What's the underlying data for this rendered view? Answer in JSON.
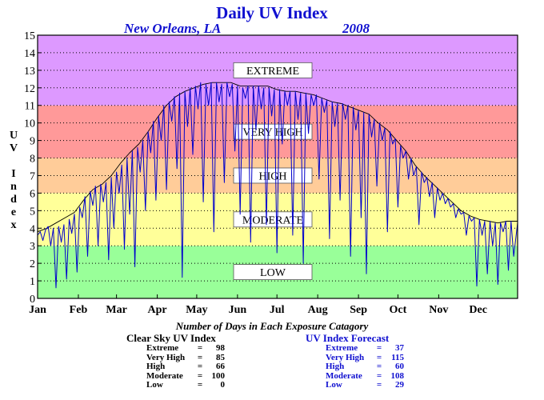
{
  "title": "Daily UV Index",
  "location": "New Orleans, LA",
  "year": "2008",
  "counts_heading": "Number of Days in Each Exposure Catagory",
  "clear_sky": {
    "heading": "Clear Sky UV Index",
    "rows": [
      {
        "label": "Extreme",
        "value": "98"
      },
      {
        "label": "Very High",
        "value": "85"
      },
      {
        "label": "High",
        "value": "66"
      },
      {
        "label": "Moderate",
        "value": "100"
      },
      {
        "label": "Low",
        "value": "0"
      }
    ]
  },
  "forecast": {
    "heading": "UV Index Forecast",
    "rows": [
      {
        "label": "Extreme",
        "value": "37"
      },
      {
        "label": "Very High",
        "value": "115"
      },
      {
        "label": "High",
        "value": "60"
      },
      {
        "label": "Moderate",
        "value": "108"
      },
      {
        "label": "Low",
        "value": "29"
      }
    ]
  },
  "chart_data": {
    "type": "line",
    "ylabel": "UV Index",
    "ylim": [
      0,
      15
    ],
    "yticks": [
      0,
      1,
      2,
      3,
      4,
      5,
      6,
      7,
      8,
      9,
      10,
      11,
      12,
      13,
      14,
      15
    ],
    "xlim": [
      1,
      366
    ],
    "x_unit": "day of year",
    "grid": "dotted horizontal",
    "months": [
      "Jan",
      "Feb",
      "Mar",
      "Apr",
      "May",
      "Jun",
      "Jul",
      "Aug",
      "Sep",
      "Oct",
      "Nov",
      "Dec"
    ],
    "month_start_days": [
      1,
      32,
      61,
      92,
      122,
      153,
      183,
      214,
      245,
      275,
      306,
      336
    ],
    "bands": [
      {
        "label": "LOW",
        "from": 0,
        "to": 3,
        "color": "#99ff99"
      },
      {
        "label": "MODERATE",
        "from": 3,
        "to": 6,
        "color": "#ffff99"
      },
      {
        "label": "HIGH",
        "from": 6,
        "to": 8,
        "color": "#ffcc99"
      },
      {
        "label": "VERY HIGH",
        "from": 8,
        "to": 11,
        "color": "#ff9999"
      },
      {
        "label": "EXTREME",
        "from": 11,
        "to": 15,
        "color": "#dd99ff"
      }
    ],
    "series": [
      {
        "name": "Clear Sky UV Index",
        "color": "#000000",
        "points": [
          [
            1,
            3.8
          ],
          [
            8,
            4.0
          ],
          [
            15,
            4.3
          ],
          [
            22,
            4.6
          ],
          [
            29,
            4.9
          ],
          [
            36,
            5.6
          ],
          [
            43,
            6.2
          ],
          [
            50,
            6.5
          ],
          [
            57,
            7.0
          ],
          [
            64,
            7.7
          ],
          [
            71,
            8.3
          ],
          [
            78,
            8.8
          ],
          [
            85,
            9.5
          ],
          [
            92,
            10.3
          ],
          [
            99,
            11.0
          ],
          [
            106,
            11.5
          ],
          [
            113,
            11.8
          ],
          [
            120,
            12.0
          ],
          [
            127,
            12.2
          ],
          [
            134,
            12.3
          ],
          [
            141,
            12.3
          ],
          [
            148,
            12.3
          ],
          [
            155,
            12.1
          ],
          [
            162,
            12.1
          ],
          [
            169,
            12.1
          ],
          [
            176,
            12.1
          ],
          [
            183,
            11.9
          ],
          [
            190,
            11.8
          ],
          [
            197,
            11.8
          ],
          [
            204,
            11.7
          ],
          [
            211,
            11.6
          ],
          [
            218,
            11.4
          ],
          [
            225,
            11.2
          ],
          [
            232,
            11.1
          ],
          [
            239,
            10.9
          ],
          [
            246,
            10.7
          ],
          [
            253,
            10.5
          ],
          [
            260,
            10.0
          ],
          [
            267,
            9.6
          ],
          [
            274,
            9.0
          ],
          [
            281,
            8.4
          ],
          [
            288,
            7.6
          ],
          [
            295,
            7.0
          ],
          [
            302,
            6.5
          ],
          [
            309,
            6.0
          ],
          [
            316,
            5.5
          ],
          [
            323,
            5.0
          ],
          [
            330,
            4.7
          ],
          [
            337,
            4.5
          ],
          [
            344,
            4.4
          ],
          [
            351,
            4.3
          ],
          [
            358,
            4.4
          ],
          [
            366,
            4.4
          ]
        ]
      },
      {
        "name": "UV Index Forecast",
        "color": "#0000cc",
        "points": [
          [
            1,
            3.6
          ],
          [
            3,
            3.8
          ],
          [
            5,
            3.3
          ],
          [
            7,
            3.9
          ],
          [
            9,
            4.1
          ],
          [
            11,
            3.0
          ],
          [
            13,
            4.0
          ],
          [
            15,
            0.6
          ],
          [
            17,
            4.1
          ],
          [
            19,
            3.2
          ],
          [
            21,
            4.2
          ],
          [
            23,
            1.1
          ],
          [
            25,
            4.5
          ],
          [
            27,
            3.7
          ],
          [
            29,
            4.8
          ],
          [
            31,
            1.5
          ],
          [
            33,
            5.2
          ],
          [
            35,
            4.6
          ],
          [
            37,
            5.8
          ],
          [
            39,
            2.4
          ],
          [
            41,
            6.1
          ],
          [
            43,
            5.3
          ],
          [
            45,
            6.4
          ],
          [
            47,
            3.0
          ],
          [
            49,
            6.5
          ],
          [
            51,
            5.5
          ],
          [
            53,
            6.6
          ],
          [
            55,
            2.2
          ],
          [
            57,
            6.9
          ],
          [
            59,
            4.0
          ],
          [
            61,
            7.2
          ],
          [
            63,
            6.0
          ],
          [
            65,
            7.6
          ],
          [
            67,
            2.8
          ],
          [
            69,
            8.0
          ],
          [
            71,
            4.8
          ],
          [
            73,
            8.4
          ],
          [
            75,
            1.8
          ],
          [
            77,
            8.6
          ],
          [
            79,
            7.2
          ],
          [
            81,
            9.0
          ],
          [
            83,
            5.0
          ],
          [
            85,
            9.5
          ],
          [
            87,
            8.3
          ],
          [
            89,
            10.1
          ],
          [
            91,
            5.6
          ],
          [
            93,
            10.4
          ],
          [
            95,
            9.0
          ],
          [
            97,
            11.0
          ],
          [
            99,
            6.2
          ],
          [
            101,
            11.2
          ],
          [
            103,
            10.1
          ],
          [
            105,
            11.5
          ],
          [
            107,
            7.4
          ],
          [
            109,
            11.7
          ],
          [
            111,
            1.2
          ],
          [
            113,
            11.8
          ],
          [
            115,
            9.8
          ],
          [
            117,
            12.0
          ],
          [
            119,
            8.2
          ],
          [
            121,
            12.1
          ],
          [
            123,
            10.8
          ],
          [
            125,
            12.3
          ],
          [
            127,
            5.5
          ],
          [
            129,
            12.2
          ],
          [
            131,
            11.0
          ],
          [
            133,
            12.3
          ],
          [
            135,
            3.8
          ],
          [
            137,
            12.3
          ],
          [
            139,
            11.2
          ],
          [
            141,
            12.2
          ],
          [
            143,
            6.6
          ],
          [
            145,
            12.3
          ],
          [
            147,
            11.5
          ],
          [
            149,
            12.2
          ],
          [
            151,
            8.4
          ],
          [
            153,
            12.1
          ],
          [
            155,
            4.8
          ],
          [
            157,
            12.0
          ],
          [
            159,
            11.4
          ],
          [
            161,
            12.1
          ],
          [
            163,
            3.2
          ],
          [
            165,
            12.1
          ],
          [
            167,
            9.6
          ],
          [
            169,
            12.1
          ],
          [
            171,
            10.8
          ],
          [
            173,
            12.0
          ],
          [
            175,
            4.2
          ],
          [
            177,
            12.0
          ],
          [
            179,
            10.4
          ],
          [
            181,
            11.9
          ],
          [
            183,
            2.6
          ],
          [
            185,
            11.9
          ],
          [
            187,
            8.8
          ],
          [
            189,
            11.8
          ],
          [
            191,
            11.0
          ],
          [
            193,
            11.8
          ],
          [
            195,
            3.6
          ],
          [
            197,
            11.8
          ],
          [
            199,
            10.2
          ],
          [
            201,
            11.7
          ],
          [
            203,
            2.0
          ],
          [
            205,
            11.7
          ],
          [
            207,
            9.4
          ],
          [
            209,
            11.6
          ],
          [
            211,
            11.0
          ],
          [
            213,
            11.6
          ],
          [
            215,
            6.8
          ],
          [
            217,
            11.4
          ],
          [
            219,
            10.6
          ],
          [
            221,
            11.3
          ],
          [
            223,
            3.4
          ],
          [
            225,
            11.2
          ],
          [
            227,
            9.8
          ],
          [
            229,
            11.1
          ],
          [
            231,
            5.6
          ],
          [
            233,
            11.1
          ],
          [
            235,
            10.2
          ],
          [
            237,
            11.0
          ],
          [
            239,
            2.4
          ],
          [
            241,
            10.9
          ],
          [
            243,
            9.6
          ],
          [
            245,
            10.7
          ],
          [
            247,
            4.6
          ],
          [
            249,
            10.6
          ],
          [
            251,
            1.4
          ],
          [
            253,
            10.5
          ],
          [
            255,
            9.2
          ],
          [
            257,
            10.2
          ],
          [
            259,
            6.4
          ],
          [
            261,
            10.0
          ],
          [
            263,
            9.0
          ],
          [
            265,
            9.7
          ],
          [
            267,
            3.8
          ],
          [
            269,
            9.5
          ],
          [
            271,
            8.8
          ],
          [
            273,
            9.1
          ],
          [
            275,
            5.2
          ],
          [
            277,
            8.7
          ],
          [
            279,
            8.0
          ],
          [
            281,
            8.4
          ],
          [
            283,
            6.8
          ],
          [
            285,
            8.0
          ],
          [
            287,
            7.0
          ],
          [
            289,
            7.5
          ],
          [
            291,
            4.2
          ],
          [
            293,
            7.2
          ],
          [
            295,
            6.6
          ],
          [
            297,
            6.9
          ],
          [
            299,
            5.8
          ],
          [
            301,
            6.6
          ],
          [
            303,
            4.6
          ],
          [
            305,
            6.3
          ],
          [
            307,
            5.6
          ],
          [
            309,
            6.0
          ],
          [
            311,
            5.4
          ],
          [
            313,
            5.7
          ],
          [
            315,
            5.2
          ],
          [
            317,
            5.4
          ],
          [
            319,
            4.6
          ],
          [
            321,
            5.1
          ],
          [
            323,
            4.8
          ],
          [
            325,
            4.9
          ],
          [
            327,
            3.6
          ],
          [
            329,
            4.7
          ],
          [
            331,
            4.4
          ],
          [
            333,
            4.6
          ],
          [
            335,
            0.7
          ],
          [
            337,
            4.5
          ],
          [
            339,
            3.6
          ],
          [
            341,
            4.4
          ],
          [
            343,
            1.4
          ],
          [
            345,
            4.4
          ],
          [
            347,
            3.0
          ],
          [
            349,
            4.3
          ],
          [
            351,
            0.8
          ],
          [
            353,
            4.3
          ],
          [
            355,
            3.8
          ],
          [
            357,
            4.4
          ],
          [
            359,
            1.6
          ],
          [
            361,
            4.4
          ],
          [
            363,
            2.4
          ],
          [
            366,
            4.3
          ]
        ]
      }
    ]
  }
}
